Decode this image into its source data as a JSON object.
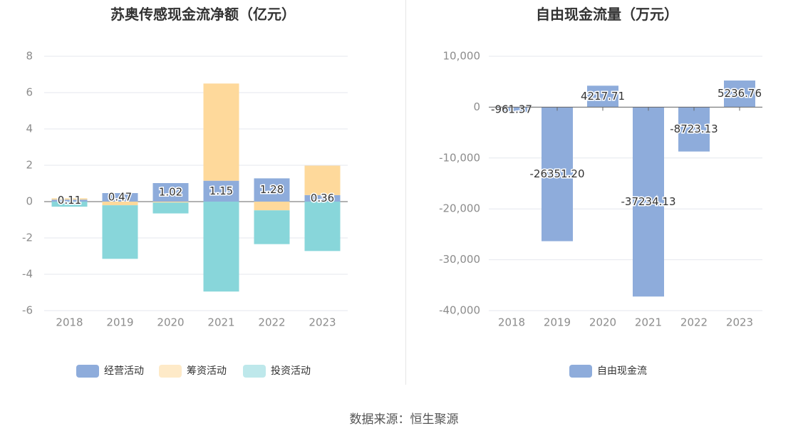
{
  "source_label": "数据来源：恒生聚源",
  "chart_data": [
    {
      "type": "bar",
      "stacked": true,
      "title": "苏奥传感现金流净额（亿元）",
      "categories": [
        "2018",
        "2019",
        "2020",
        "2021",
        "2022",
        "2023"
      ],
      "ylim": [
        -6,
        8
      ],
      "yticks": [
        -6,
        -4,
        -2,
        0,
        2,
        4,
        6,
        8
      ],
      "ytick_labels": [
        "-6",
        "-4",
        "-2",
        "0",
        "2",
        "4",
        "6",
        "8"
      ],
      "series": [
        {
          "name": "经营活动",
          "color": "#8eacdb",
          "values": [
            0.11,
            0.47,
            1.02,
            1.15,
            1.28,
            0.36
          ]
        },
        {
          "name": "筹资活动",
          "color": "#fed99b",
          "values": [
            0.07,
            -0.2,
            -0.05,
            5.35,
            -0.48,
            1.62
          ]
        },
        {
          "name": "投资活动",
          "color": "#88d6da",
          "values": [
            -0.28,
            -2.95,
            -0.6,
            -4.95,
            -1.86,
            -2.72
          ]
        }
      ],
      "data_labels": [
        "0.11",
        "0.47",
        "1.02",
        "1.15",
        "1.28",
        "0.36"
      ],
      "legend_position": "bottom"
    },
    {
      "type": "bar",
      "title": "自由现金流量（万元）",
      "categories": [
        "2018",
        "2019",
        "2020",
        "2021",
        "2022",
        "2023"
      ],
      "ylim": [
        -40000,
        10000
      ],
      "yticks": [
        -40000,
        -30000,
        -20000,
        -10000,
        0,
        10000
      ],
      "ytick_labels": [
        "-40,000",
        "-30,000",
        "-20,000",
        "-10,000",
        "0",
        "10,000"
      ],
      "series": [
        {
          "name": "自由现金流",
          "color": "#8eacdb",
          "values": [
            -961.37,
            -26351.2,
            4217.71,
            -37234.13,
            -8723.13,
            5236.76
          ]
        }
      ],
      "data_labels": [
        "-961.37",
        "-26351.20",
        "4217.71",
        "-37234.13",
        "-8723.13",
        "5236.76"
      ],
      "legend_position": "bottom"
    }
  ]
}
